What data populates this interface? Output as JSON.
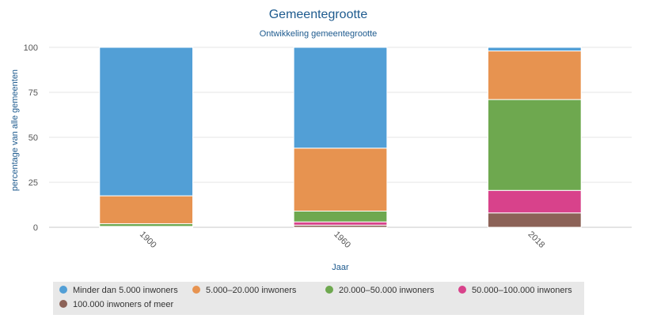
{
  "chart_data": {
    "type": "bar",
    "stacked": true,
    "title": "Gemeentegrootte",
    "subtitle": "Ontwikkeling gemeentegrootte",
    "xlabel": "Jaar",
    "ylabel": "percentage van alle gemeenten",
    "categories": [
      "1900",
      "1960",
      "2018"
    ],
    "ylim": [
      0,
      100
    ],
    "yticks": [
      0,
      25,
      50,
      75,
      100
    ],
    "grid": true,
    "legend_position": "bottom",
    "series": [
      {
        "name": "100.000 inwoners of meer",
        "color": "#8c6257",
        "values": [
          0.2,
          1.2,
          8.0
        ]
      },
      {
        "name": "50.000–100.000 inwoners",
        "color": "#d8428b",
        "values": [
          0.3,
          1.8,
          12.5
        ]
      },
      {
        "name": "20.000–50.000 inwoners",
        "color": "#6ea84f",
        "values": [
          1.5,
          6.0,
          50.5
        ]
      },
      {
        "name": "5.000–20.000 inwoners",
        "color": "#e79350",
        "values": [
          15.5,
          35.0,
          27.0
        ]
      },
      {
        "name": "Minder dan 5.000 inwoners",
        "color": "#529fd6",
        "values": [
          82.5,
          56.0,
          2.0
        ]
      }
    ],
    "legend_order": [
      4,
      3,
      2,
      1,
      0
    ]
  },
  "colors": {
    "title": "#1d5a8e",
    "axis_text": "#555555",
    "grid": "#e6e6e6",
    "legend_bg": "#e8e8e8"
  }
}
